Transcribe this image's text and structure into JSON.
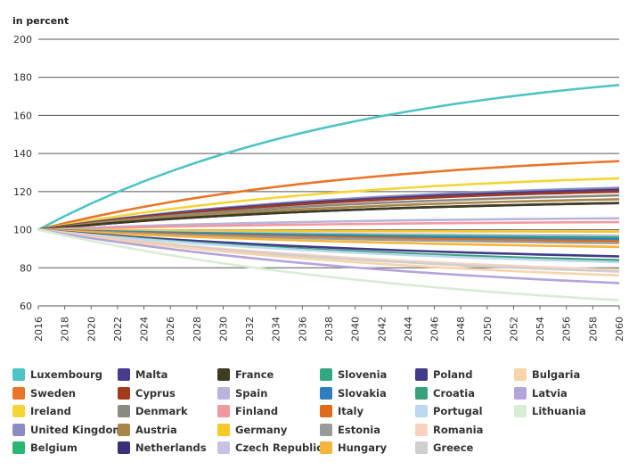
{
  "chart_data": {
    "type": "line",
    "title": "",
    "xlabel": "",
    "ylabel": "in percent",
    "ylim": [
      60,
      200
    ],
    "yticks": [
      60,
      80,
      100,
      120,
      140,
      160,
      180,
      200
    ],
    "x": [
      2016,
      2018,
      2020,
      2022,
      2024,
      2026,
      2028,
      2030,
      2032,
      2034,
      2036,
      2038,
      2040,
      2042,
      2044,
      2046,
      2048,
      2050,
      2052,
      2054,
      2056,
      2058,
      2060
    ],
    "grid": true,
    "legend_position": "bottom",
    "series": [
      {
        "name": "Luxembourg",
        "color": "#4fc3c4",
        "end": 176
      },
      {
        "name": "Sweden",
        "color": "#e8752a",
        "end": 136
      },
      {
        "name": "Ireland",
        "color": "#f4d538",
        "end": 127
      },
      {
        "name": "United Kingdom",
        "color": "#8c8cc4",
        "end": 122
      },
      {
        "name": "Belgium",
        "color": "#2bb673",
        "end": 121
      },
      {
        "name": "Malta",
        "color": "#4a3a8c",
        "end": 121
      },
      {
        "name": "Cyprus",
        "color": "#a33a1e",
        "end": 120
      },
      {
        "name": "Denmark",
        "color": "#8a8a82",
        "end": 118
      },
      {
        "name": "Austria",
        "color": "#a8864a",
        "end": 116
      },
      {
        "name": "Netherlands",
        "color": "#3a2f7a",
        "end": 114
      },
      {
        "name": "France",
        "color": "#3d3b22",
        "end": 114
      },
      {
        "name": "Spain",
        "color": "#b8b4dc",
        "end": 106
      },
      {
        "name": "Finland",
        "color": "#f09aa0",
        "end": 104
      },
      {
        "name": "Germany",
        "color": "#f6c926",
        "end": 99
      },
      {
        "name": "Czech Republic",
        "color": "#c9c0e6",
        "end": 97
      },
      {
        "name": "Slovenia",
        "color": "#33a880",
        "end": 96
      },
      {
        "name": "Slovakia",
        "color": "#2f7fbf",
        "end": 95
      },
      {
        "name": "Italy",
        "color": "#e06a1a",
        "end": 94
      },
      {
        "name": "Estonia",
        "color": "#9a9a9a",
        "end": 93
      },
      {
        "name": "Hungary",
        "color": "#f5b43a",
        "end": 91
      },
      {
        "name": "Poland",
        "color": "#403a8a",
        "end": 86
      },
      {
        "name": "Croatia",
        "color": "#3aa07a",
        "end": 84
      },
      {
        "name": "Portugal",
        "color": "#bcd8ee",
        "end": 83
      },
      {
        "name": "Romania",
        "color": "#f8d2c0",
        "end": 79
      },
      {
        "name": "Greece",
        "color": "#cfcfcf",
        "end": 78
      },
      {
        "name": "Bulgaria",
        "color": "#f9d3aa",
        "end": 76
      },
      {
        "name": "Latvia",
        "color": "#b4a4dc",
        "end": 72
      },
      {
        "name": "Lithuania",
        "color": "#d9ecd6",
        "end": 63
      }
    ]
  },
  "legend": {
    "columns": [
      [
        "Luxembourg",
        "Sweden",
        "Ireland",
        "United Kingdom",
        "Belgium"
      ],
      [
        "Malta",
        "Cyprus",
        "Denmark",
        "Austria",
        "Netherlands"
      ],
      [
        "France",
        "Spain",
        "Finland",
        "Germany",
        "Czech Republic"
      ],
      [
        "Slovenia",
        "Slovakia",
        "Italy",
        "Estonia",
        "Hungary"
      ],
      [
        "Poland",
        "Croatia",
        "Portugal",
        "Romania",
        "Greece"
      ],
      [
        "Bulgaria",
        "Latvia",
        "Lithuania"
      ]
    ]
  }
}
